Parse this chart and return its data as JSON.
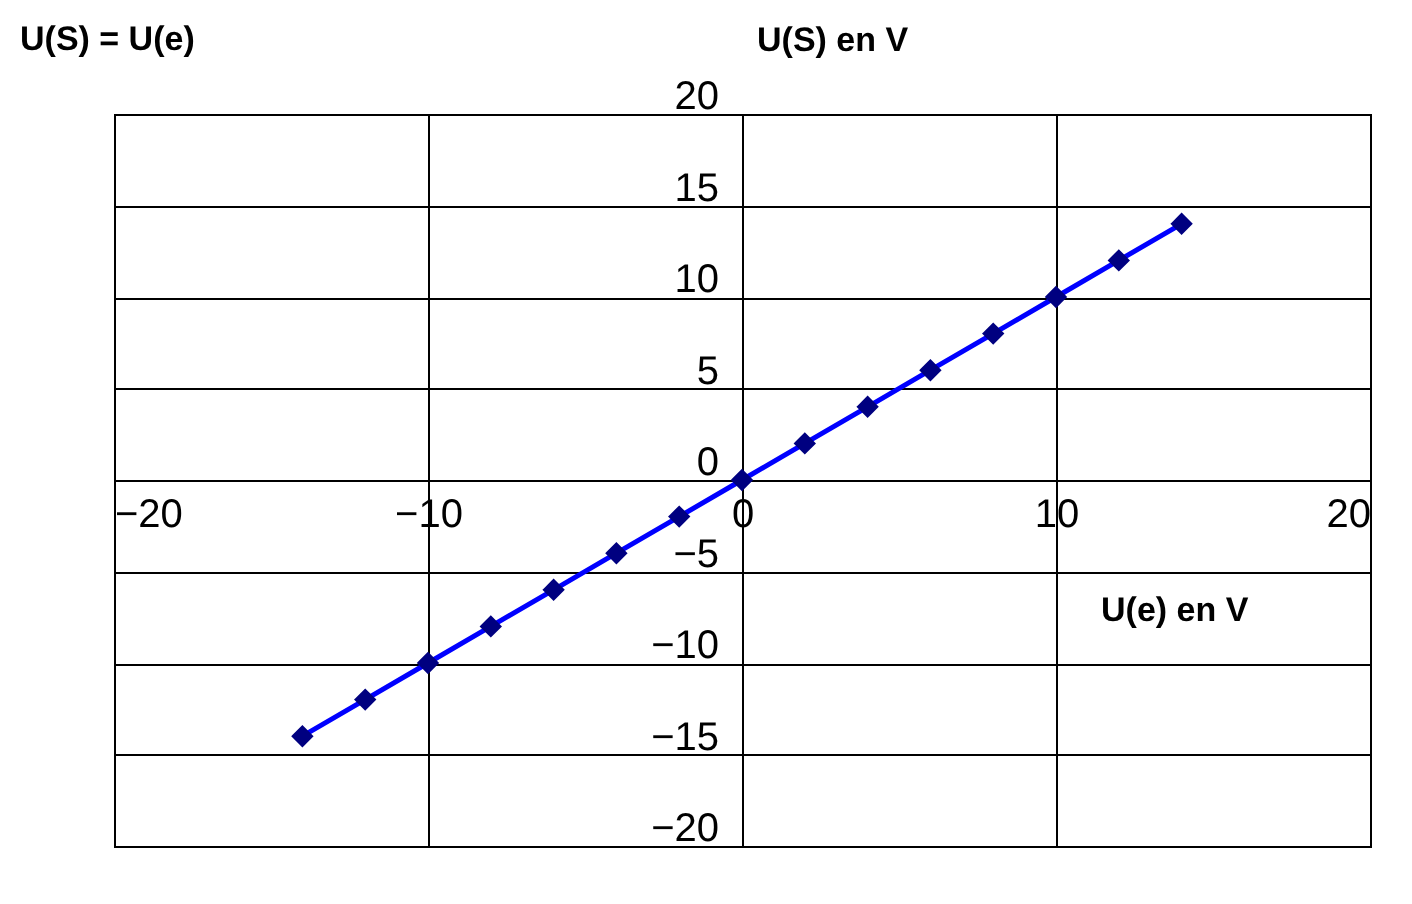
{
  "chart_data": {
    "type": "line",
    "title": "U(S) = U(e)",
    "xlabel": "U(e) en V",
    "ylabel": "U(S) en V",
    "x": [
      -14,
      -12,
      -10,
      -8,
      -6,
      -4,
      -2,
      0,
      2,
      4,
      6,
      8,
      10,
      12,
      14
    ],
    "series": [
      {
        "color": "#0000ff",
        "values": [
          -14,
          -12,
          -10,
          -8,
          -6,
          -4,
          -2,
          0,
          2,
          4,
          6,
          8,
          10,
          12,
          14
        ]
      }
    ],
    "xlim": [
      -20,
      20
    ],
    "ylim": [
      -20,
      20
    ],
    "xticks": [
      -20,
      -10,
      0,
      10,
      20
    ],
    "yticks": [
      -20,
      -15,
      -10,
      -5,
      0,
      5,
      10,
      15,
      20
    ],
    "grid": true,
    "marker": "diamond",
    "line_style": "solid"
  }
}
